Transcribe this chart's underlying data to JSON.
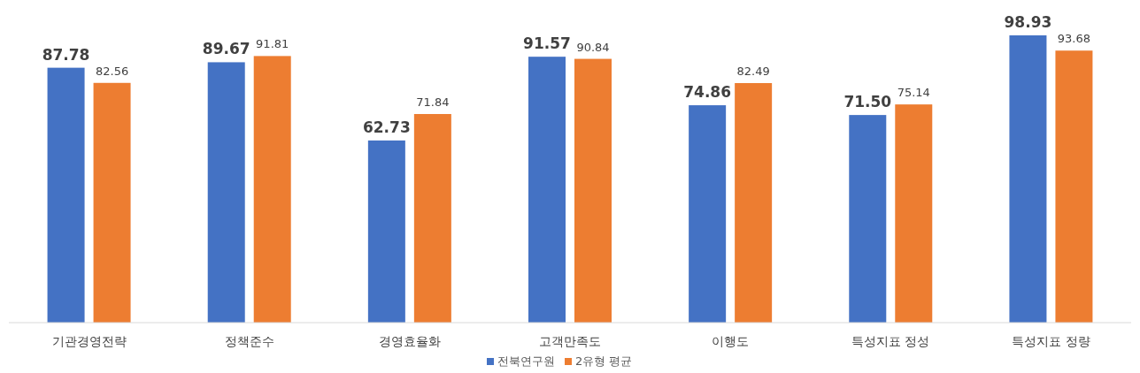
{
  "chart_data": {
    "type": "bar",
    "categories": [
      "기관경영전략",
      "정책준수",
      "경영효율화",
      "고객만족도",
      "이행도",
      "특성지표 정성",
      "특성지표 정량"
    ],
    "series": [
      {
        "name": "전북연구원",
        "color": "#4472c4",
        "values": [
          87.78,
          89.67,
          62.73,
          91.57,
          74.86,
          71.5,
          98.93
        ],
        "value_labels": [
          "87.78",
          "89.67",
          "62.73",
          "91.57",
          "74.86",
          "71.50",
          "98.93"
        ]
      },
      {
        "name": "2유형 평균",
        "color": "#ed7d31",
        "values": [
          82.56,
          91.81,
          71.84,
          90.84,
          82.49,
          75.14,
          93.68
        ],
        "value_labels": [
          "82.56",
          "91.81",
          "71.84",
          "90.84",
          "82.49",
          "75.14",
          "93.68"
        ]
      }
    ],
    "legend": "bottom"
  }
}
